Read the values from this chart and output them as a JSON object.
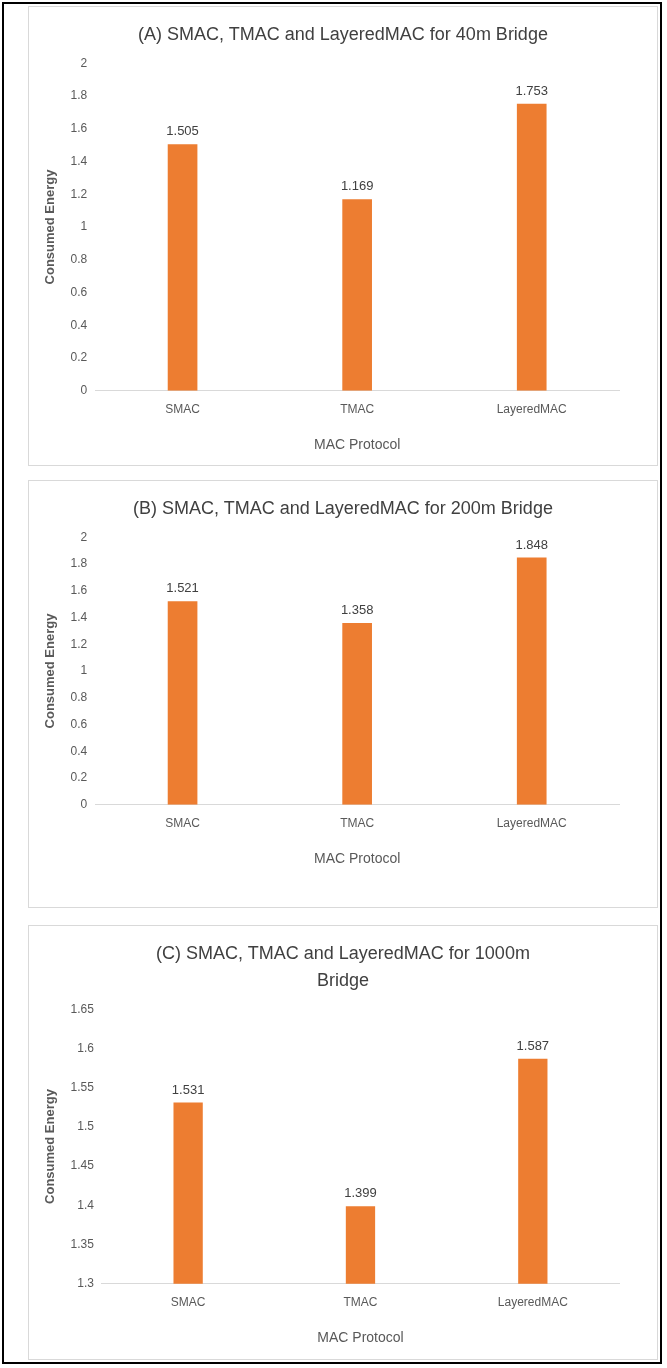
{
  "chart_data": [
    {
      "type": "bar",
      "title": "(A) SMAC, TMAC and LayeredMAC for 40m Bridge",
      "xlabel": "MAC Protocol",
      "ylabel": "Consumed Energy",
      "categories": [
        "SMAC",
        "TMAC",
        "LayeredMAC"
      ],
      "values": [
        1.505,
        1.169,
        1.753
      ],
      "color": "#ed7d31",
      "ylim": [
        0,
        2
      ],
      "yticks": [
        0,
        0.2,
        0.4,
        0.6,
        0.8,
        1,
        1.2,
        1.4,
        1.6,
        1.8,
        2
      ],
      "grid": false,
      "legend": false,
      "data_labels": true
    },
    {
      "type": "bar",
      "title": "(B) SMAC, TMAC and LayeredMAC for 200m Bridge",
      "xlabel": "MAC Protocol",
      "ylabel": "Consumed Energy",
      "categories": [
        "SMAC",
        "TMAC",
        "LayeredMAC"
      ],
      "values": [
        1.521,
        1.358,
        1.848
      ],
      "color": "#ed7d31",
      "ylim": [
        0,
        2
      ],
      "yticks": [
        0,
        0.2,
        0.4,
        0.6,
        0.8,
        1,
        1.2,
        1.4,
        1.6,
        1.8,
        2
      ],
      "grid": false,
      "legend": false,
      "data_labels": true
    },
    {
      "type": "bar",
      "title": "(C) SMAC, TMAC and LayeredMAC for 1000m Bridge",
      "xlabel": "MAC Protocol",
      "ylabel": "Consumed Energy",
      "categories": [
        "SMAC",
        "TMAC",
        "LayeredMAC"
      ],
      "values": [
        1.531,
        1.399,
        1.587
      ],
      "color": "#ed7d31",
      "ylim": [
        1.3,
        1.65
      ],
      "yticks": [
        1.3,
        1.35,
        1.4,
        1.45,
        1.5,
        1.55,
        1.6,
        1.65
      ],
      "grid": false,
      "legend": false,
      "data_labels": true
    }
  ]
}
